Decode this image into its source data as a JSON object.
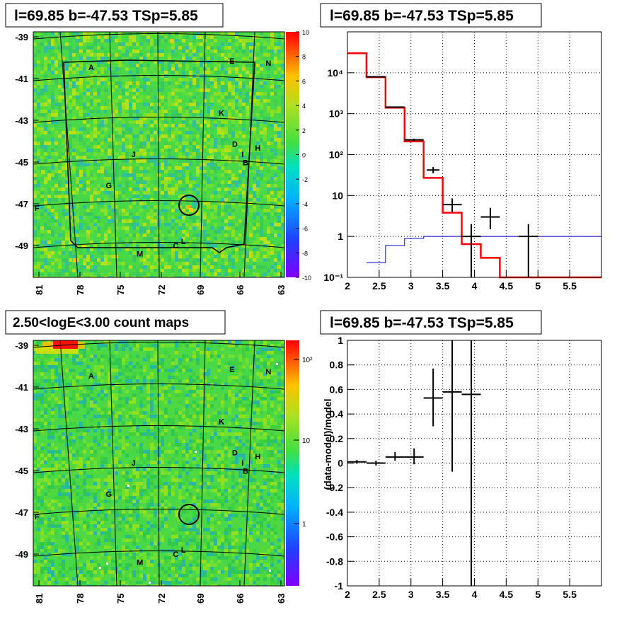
{
  "panels": {
    "tl": {
      "title": "l=69.85 b=-47.53 TSp=5.85"
    },
    "tr": {
      "title": "l=69.85 b=-47.53 TSp=5.85"
    },
    "bl": {
      "title": "2.50<logE<3.00 count maps"
    },
    "br": {
      "title": "l=69.85 b=-47.53 TSp=5.85"
    }
  },
  "sky_map": {
    "x_ticks": [
      "81",
      "78",
      "75",
      "72",
      "69",
      "66",
      "63"
    ],
    "y_ticks": [
      "-39",
      "-41",
      "-43",
      "-45",
      "-47",
      "-49"
    ],
    "source_labels": [
      {
        "label": "A",
        "l": 76.9,
        "b": -40.6
      },
      {
        "label": "E",
        "l": 66.4,
        "b": -40.3
      },
      {
        "label": "N",
        "l": 63.7,
        "b": -40.4
      },
      {
        "label": "K",
        "l": 67.2,
        "b": -42.8
      },
      {
        "label": "D",
        "l": 66.2,
        "b": -44.3
      },
      {
        "label": "H",
        "l": 64.5,
        "b": -44.5
      },
      {
        "label": "I",
        "l": 65.5,
        "b": -44.8
      },
      {
        "label": "B",
        "l": 65.4,
        "b": -45.2
      },
      {
        "label": "J",
        "l": 73.7,
        "b": -44.8
      },
      {
        "label": "G",
        "l": 75.6,
        "b": -46.3
      },
      {
        "label": "F",
        "l": 80.9,
        "b": -47.4
      },
      {
        "label": "C",
        "l": 70.6,
        "b": -49.2
      },
      {
        "label": "L",
        "l": 70.0,
        "b": -49.0
      },
      {
        "label": "M",
        "l": 73.3,
        "b": -49.6
      }
    ],
    "target": {
      "l": 69.85,
      "b": -47.53
    }
  },
  "significance_colorbar": {
    "ticks": [
      "10",
      "8",
      "6",
      "4",
      "2",
      "0",
      "-2",
      "-4",
      "-6",
      "-8",
      "-10"
    ]
  },
  "counts_colorbar": {
    "ticks": [
      "10²",
      "10",
      "1"
    ]
  },
  "chart_data": [
    {
      "type": "line",
      "panel": "spectrum",
      "title": "l=69.85 b=-47.53 TSp=5.85",
      "xlabel": "",
      "ylabel": "",
      "xlim": [
        2,
        6
      ],
      "ylim": [
        0.1,
        100000
      ],
      "y_scale": "log",
      "x_tick_labels": [
        "2",
        "2.5",
        "3",
        "3.5",
        "4",
        "4.5",
        "5",
        "5.5"
      ],
      "y_tick_labels": [
        "10⁻¹",
        "1",
        "10",
        "10²",
        "10³",
        "10⁴"
      ],
      "grid": true,
      "series": [
        {
          "color": "#ff0000",
          "style": "step",
          "bin_edges": [
            2.0,
            2.3,
            2.6,
            2.9,
            3.2,
            3.5,
            3.8,
            4.1,
            4.4,
            6.0
          ],
          "values": [
            30000,
            7800,
            1400,
            210,
            27,
            3.8,
            0.65,
            0.3,
            0.1
          ]
        },
        {
          "color": "#0000cc",
          "style": "step",
          "bin_edges": [
            2.3,
            2.6,
            2.9,
            3.2,
            6.0
          ],
          "values": [
            0.23,
            0.6,
            0.9,
            1.0
          ]
        },
        {
          "color": "#000000",
          "style": "errorbars",
          "points": [
            {
              "x": 2.45,
              "y": 8000,
              "xerr": 0.15,
              "ylo": 7800,
              "yhi": 8200
            },
            {
              "x": 2.75,
              "y": 1450,
              "xerr": 0.15,
              "ylo": 1400,
              "yhi": 1500
            },
            {
              "x": 3.05,
              "y": 230,
              "xerr": 0.15,
              "ylo": 215,
              "yhi": 245
            },
            {
              "x": 3.35,
              "y": 42,
              "xerr": 0.1,
              "ylo": 35,
              "yhi": 50
            },
            {
              "x": 3.65,
              "y": 6,
              "xerr": 0.15,
              "ylo": 4,
              "yhi": 8.5
            },
            {
              "x": 3.95,
              "y": 1.0,
              "xerr": 0.15,
              "ylo": 0.1,
              "yhi": 2.0
            },
            {
              "x": 4.25,
              "y": 3,
              "xerr": 0.15,
              "ylo": 1.5,
              "yhi": 5
            },
            {
              "x": 4.85,
              "y": 1.0,
              "xerr": 0.15,
              "ylo": 0.1,
              "yhi": 2.0
            }
          ]
        }
      ]
    },
    {
      "type": "scatter",
      "panel": "residuals",
      "title": "l=69.85 b=-47.53 TSp=5.85",
      "xlabel": "",
      "ylabel": "(data-model)/model",
      "xlim": [
        2,
        6
      ],
      "ylim": [
        -1,
        1
      ],
      "x_tick_labels": [
        "2",
        "2.5",
        "3",
        "3.5",
        "4",
        "4.5",
        "5",
        "5.5"
      ],
      "y_tick_labels": [
        "-1",
        "-0.8",
        "-0.6",
        "-0.4",
        "-0.2",
        "0",
        "0.2",
        "0.4",
        "0.6",
        "0.8",
        "1"
      ],
      "grid": true,
      "series": [
        {
          "color": "#000000",
          "style": "errorbars",
          "points": [
            {
              "x": 2.15,
              "y": 0.01,
              "xerr": 0.15,
              "ylo": -0.005,
              "yhi": 0.025
            },
            {
              "x": 2.45,
              "y": 0.0,
              "xerr": 0.15,
              "ylo": -0.02,
              "yhi": 0.02
            },
            {
              "x": 2.75,
              "y": 0.05,
              "xerr": 0.15,
              "ylo": 0.02,
              "yhi": 0.09
            },
            {
              "x": 3.05,
              "y": 0.05,
              "xerr": 0.15,
              "ylo": -0.01,
              "yhi": 0.12
            },
            {
              "x": 3.35,
              "y": 0.53,
              "xerr": 0.15,
              "ylo": 0.3,
              "yhi": 0.77
            },
            {
              "x": 3.65,
              "y": 0.58,
              "xerr": 0.15,
              "ylo": -0.07,
              "yhi": 1.0
            },
            {
              "x": 3.95,
              "y": 0.56,
              "xerr": 0.15,
              "ylo": -1.0,
              "yhi": 1.0
            }
          ]
        }
      ]
    }
  ]
}
